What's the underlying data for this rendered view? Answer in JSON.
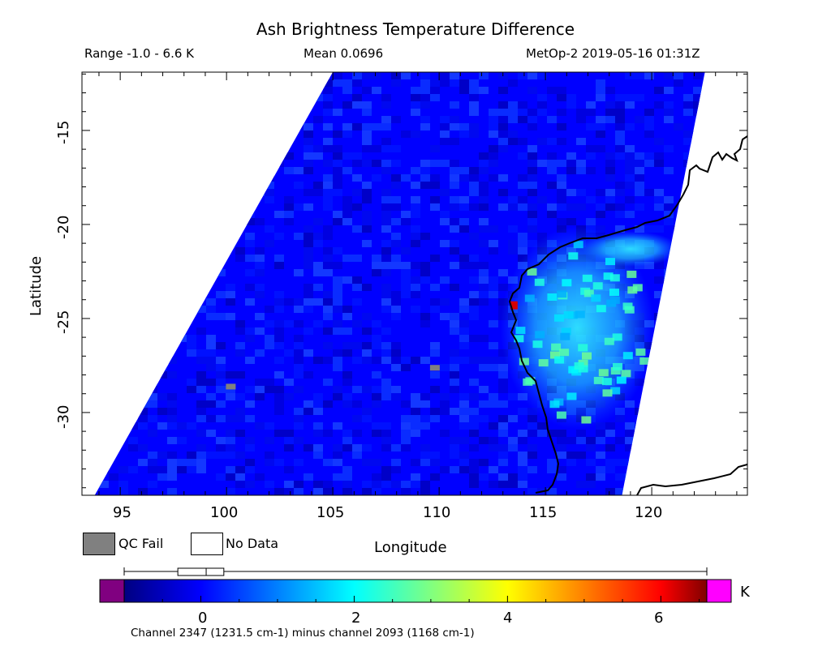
{
  "chart_data": {
    "type": "heatmap",
    "title": "Ash Brightness Temperature Difference",
    "subtitle": {
      "range": "Range -1.0 - 6.6 K",
      "mean": "Mean 0.0696",
      "satellite_time": "MetOp-2 2019-05-16 01:31Z"
    },
    "xlabel": "Longitude",
    "ylabel": "Latitude",
    "xlim": [
      93.2,
      124.5
    ],
    "ylim": [
      -34.4,
      -11.9
    ],
    "xticks": [
      95,
      100,
      105,
      110,
      115,
      120
    ],
    "xtick_labels": [
      "95",
      "100",
      "105",
      "110",
      "115",
      "120"
    ],
    "yticks": [
      -15,
      -20,
      -25,
      -30
    ],
    "ytick_labels": [
      "-15",
      "-20",
      "-25",
      "-30"
    ],
    "swath_corners_lonlat": [
      [
        105.0,
        -11.9
      ],
      [
        122.5,
        -11.9
      ],
      [
        118.6,
        -34.4
      ],
      [
        93.8,
        -34.4
      ]
    ],
    "background_value_K": 0.0,
    "ash_plume": {
      "description_values_K": [
        1.5,
        2.0,
        2.5,
        3.0
      ],
      "center_lonlat": [
        116.5,
        -25.5
      ]
    },
    "hot_pixel": {
      "lon": 113.5,
      "lat": -24.3,
      "value_K": 6.2
    },
    "qc_fail_pixels": [
      [
        100.2,
        -28.6
      ],
      [
        109.8,
        -27.6
      ]
    ],
    "colorbar": {
      "min": -1.0,
      "max": 6.6,
      "ticks": [
        0,
        2,
        4,
        6
      ],
      "tick_labels": [
        "0",
        "2",
        "4",
        "6"
      ],
      "unit": "K",
      "underflow_color": "#800080",
      "overflow_color": "#ff00ff",
      "stops": [
        {
          "v": -1.0,
          "c": "#000080"
        },
        {
          "v": 0.0,
          "c": "#0000ff"
        },
        {
          "v": 1.0,
          "c": "#0080ff"
        },
        {
          "v": 2.0,
          "c": "#00ffff"
        },
        {
          "v": 3.0,
          "c": "#80ff80"
        },
        {
          "v": 4.0,
          "c": "#ffff00"
        },
        {
          "v": 5.0,
          "c": "#ff8000"
        },
        {
          "v": 6.0,
          "c": "#ff0000"
        },
        {
          "v": 6.6,
          "c": "#800000"
        }
      ]
    },
    "boxplot": {
      "min": -1.0,
      "q1": -0.3,
      "median": 0.0696,
      "q3": 0.3,
      "max": 6.6
    },
    "legend": {
      "qc_fail_label": "QC Fail",
      "qc_fail_color": "#808080",
      "no_data_label": "No Data",
      "no_data_color": "#ffffff"
    },
    "caption": "Channel 2347 (1231.5 cm-1) minus channel 2093 (1168 cm-1)"
  }
}
